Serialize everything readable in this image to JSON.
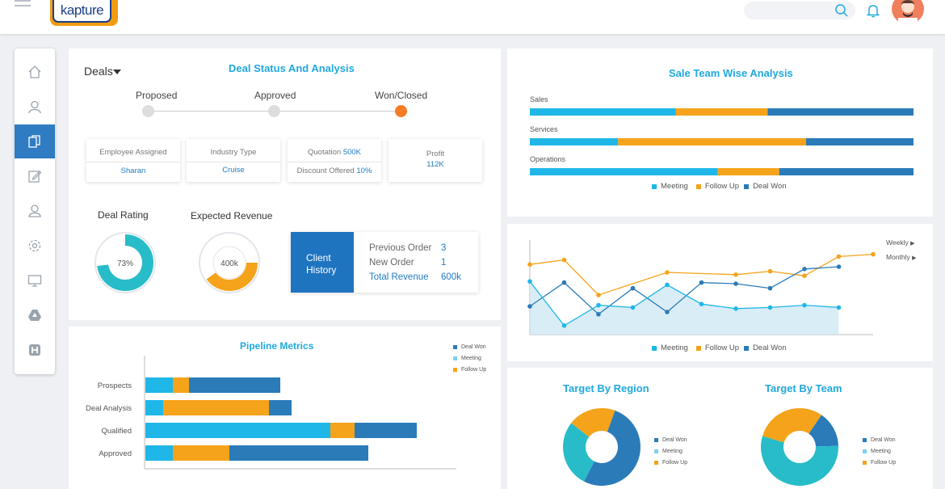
{
  "header": {
    "logo_text": "kapture",
    "search_placeholder": "",
    "icons": [
      "menu-icon",
      "search-icon",
      "bell-icon",
      "user-avatar"
    ]
  },
  "sidebar": {
    "items": [
      {
        "icon": "home-icon",
        "active": false
      },
      {
        "icon": "user-icon",
        "active": false
      },
      {
        "icon": "documents-icon",
        "active": true
      },
      {
        "icon": "edit-icon",
        "active": false
      },
      {
        "icon": "contacts-icon",
        "active": false
      },
      {
        "icon": "settings-icon",
        "active": false
      },
      {
        "icon": "monitor-icon",
        "active": false
      },
      {
        "icon": "drive-icon",
        "active": false
      },
      {
        "icon": "hubspot-icon",
        "active": false
      }
    ]
  },
  "deals": {
    "dropdown_label": "Deals",
    "title": "Deal Status And Analysis",
    "stages": [
      "Proposed",
      "Approved",
      "Won/Closed"
    ],
    "active_stage": "Won/Closed",
    "employee_assigned_label": "Employee Assigned",
    "employee_assigned": "Sharan",
    "industry_type_label": "Industry Type",
    "industry_type": "Cruise",
    "quotation_label": "Quotation",
    "quotation": "500K",
    "discount_label": "Discount Offered",
    "discount": "10%",
    "profit_label": "Profit",
    "profit": "112K",
    "deal_rating_label": "Deal Rating",
    "deal_rating": "73%",
    "deal_rating_fraction": 0.73,
    "expected_revenue_label": "Expected Revenue",
    "expected_revenue": "400k",
    "expected_revenue_fraction": 0.4,
    "client_history_label": "Client History",
    "client_history": [
      {
        "label": "Previous Order",
        "value": "3"
      },
      {
        "label": "New Order",
        "value": "1"
      },
      {
        "label": "Total Revenue",
        "value": "600k"
      }
    ]
  },
  "colors": {
    "meeting": "#1fb7e8",
    "follow_up": "#f5a31a",
    "deal_won": "#2b7bb9",
    "active_nav": "#2f7cc2",
    "title": "#1fa9df",
    "rating": "#27bcc8",
    "revenue": "#f5a31a"
  },
  "sale_team": {
    "title": "Sale Team Wise Analysis",
    "rows": [
      {
        "label": "Sales",
        "meeting": 0.38,
        "follow_up": 0.24,
        "deal_won": 0.38
      },
      {
        "label": "Services",
        "meeting": 0.23,
        "follow_up": 0.49,
        "deal_won": 0.28
      },
      {
        "label": "Operations",
        "meeting": 0.49,
        "follow_up": 0.16,
        "deal_won": 0.35
      }
    ],
    "legend": [
      "Meeting",
      "Follow Up",
      "Deal Won"
    ]
  },
  "trend": {
    "period_options": [
      "Weekly",
      "Monthly"
    ],
    "legend": [
      "Meeting",
      "Follow Up",
      "Deal Won"
    ]
  },
  "pipeline": {
    "title": "Pipeline Metrics",
    "legend": [
      "Deal Won",
      "Meeting",
      "Follow Up"
    ],
    "rows": [
      {
        "label": "Prospects",
        "meeting": 34,
        "follow_up": 20,
        "deal_won": 113
      },
      {
        "label": "Deal Analysis",
        "meeting": 22,
        "follow_up": 131,
        "deal_won": 28
      },
      {
        "label": "Qualified",
        "meeting": 229,
        "follow_up": 30,
        "deal_won": 77
      },
      {
        "label": "Approved",
        "meeting": 34,
        "follow_up": 70,
        "deal_won": 172
      }
    ]
  },
  "regions": {
    "region_title": "Target By Region",
    "team_title": "Target By Team",
    "legend": [
      "Deal Won",
      "Meeting",
      "Follow Up"
    ],
    "region_slices": [
      {
        "name": "Deal Won",
        "value": 0.52
      },
      {
        "name": "Meeting",
        "value": 0.28
      },
      {
        "name": "Follow Up",
        "value": 0.2
      }
    ],
    "team_slices": [
      {
        "name": "Deal Won",
        "value": 0.15
      },
      {
        "name": "Meeting",
        "value": 0.55
      },
      {
        "name": "Follow Up",
        "value": 0.3
      }
    ]
  },
  "chart_data": [
    {
      "type": "bar",
      "title": "Sale Team Wise Analysis",
      "orientation": "horizontal-stacked",
      "categories": [
        "Sales",
        "Services",
        "Operations"
      ],
      "series": [
        {
          "name": "Meeting",
          "values": [
            38,
            23,
            49
          ]
        },
        {
          "name": "Follow Up",
          "values": [
            24,
            49,
            16
          ]
        },
        {
          "name": "Deal Won",
          "values": [
            38,
            28,
            35
          ]
        }
      ]
    },
    {
      "type": "line",
      "x": [
        1,
        2,
        3,
        4,
        5,
        6,
        7,
        8,
        9,
        10,
        11,
        12
      ],
      "series": [
        {
          "name": "Follow Up",
          "values": [
            62,
            66,
            35,
            null,
            55,
            null,
            53,
            56,
            52,
            69,
            71,
            null
          ]
        },
        {
          "name": "Deal Won",
          "values": [
            25,
            46,
            18,
            41,
            20,
            46,
            45,
            41,
            58,
            60,
            null,
            null
          ]
        },
        {
          "name": "Meeting",
          "values": [
            47,
            8,
            26,
            24,
            44,
            27,
            23,
            24,
            26,
            24,
            null,
            null
          ]
        }
      ],
      "legend": [
        "Meeting",
        "Follow Up",
        "Deal Won"
      ]
    },
    {
      "type": "bar",
      "title": "Pipeline Metrics",
      "orientation": "horizontal-stacked",
      "categories": [
        "Prospects",
        "Deal Analysis",
        "Qualified",
        "Approved"
      ],
      "series": [
        {
          "name": "Meeting",
          "values": [
            34,
            22,
            229,
            34
          ]
        },
        {
          "name": "Follow Up",
          "values": [
            20,
            131,
            30,
            70
          ]
        },
        {
          "name": "Deal Won",
          "values": [
            113,
            28,
            77,
            172
          ]
        }
      ]
    },
    {
      "type": "pie",
      "title": "Target By Region",
      "categories": [
        "Deal Won",
        "Meeting",
        "Follow Up"
      ],
      "values": [
        52,
        28,
        20
      ]
    },
    {
      "type": "pie",
      "title": "Target By Team",
      "categories": [
        "Deal Won",
        "Meeting",
        "Follow Up"
      ],
      "values": [
        15,
        55,
        30
      ]
    }
  ]
}
